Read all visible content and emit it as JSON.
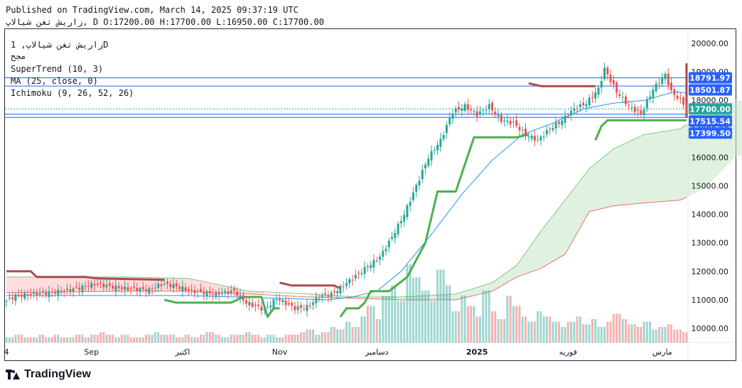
{
  "header": {
    "published": "Published on TradingView.com, March 14, 2025 09:37:19 UTC",
    "ohlc": "زاریش تغن شیالاپ, D O:17200.00 H:17700.00 L:16950.00 C:17700.00"
  },
  "legend": {
    "symbol": "زاریش تغن شیالاپ, 1D",
    "exchange": "مجح",
    "supertrend": "SuperTrend (10, 3)",
    "ma": "MA (25, close, 0)",
    "ichimoku": "Ichimoku (9, 26, 52, 26)"
  },
  "brand": {
    "name": "TradingView"
  },
  "colors": {
    "up": "#26a69a",
    "down": "#ef5350",
    "supertrend_up": "#4caf50",
    "supertrend_down": "#a84c50",
    "ma": "#2196f3",
    "cloud_green": "#c8e6c9",
    "cloud_red": "#ffcdd2",
    "label_blue": "#2962ff",
    "label_green": "#26a69a"
  },
  "chart_data": {
    "type": "candlestick",
    "y_axis": {
      "min": 9500,
      "max": 20500,
      "ticks": [
        10000,
        11000,
        12000,
        13000,
        14000,
        15000,
        16000,
        17000,
        18000,
        19000,
        20000
      ],
      "tick_labels": [
        "10000.00",
        "11000.00",
        "12000.00",
        "13000.00",
        "14000.00",
        "15000.00",
        "16000.00",
        "17000.00",
        "18000.00",
        "19000.00",
        "20000.00"
      ]
    },
    "x_axis": {
      "labels": [
        "4",
        "Sep",
        "اکتبر",
        "Nov",
        "دسامبر",
        "2025",
        "فوریه",
        "مارس"
      ],
      "label_bar_index": [
        0,
        28,
        58,
        90,
        122,
        155,
        185,
        216
      ]
    },
    "price_labels": [
      {
        "value": 18791.97,
        "text": "18791.97",
        "color": "#2962ff"
      },
      {
        "value": 18501.87,
        "text": "18501.87",
        "color": "#2962ff"
      },
      {
        "value": 17700.0,
        "text": "17700.00",
        "color": "#26a69a"
      },
      {
        "value": 17515.54,
        "text": "17515.54",
        "color": "#2962ff"
      },
      {
        "value": 17399.5,
        "text": "17399.50",
        "color": "#2962ff"
      }
    ],
    "bars_count": 225,
    "price_path": [
      [
        0,
        10900
      ],
      [
        4,
        11150
      ],
      [
        10,
        11200
      ],
      [
        20,
        11300
      ],
      [
        30,
        11550
      ],
      [
        40,
        11400
      ],
      [
        48,
        11350
      ],
      [
        52,
        11550
      ],
      [
        56,
        11500
      ],
      [
        62,
        11300
      ],
      [
        70,
        11200
      ],
      [
        76,
        11300
      ],
      [
        80,
        10900
      ],
      [
        86,
        10650
      ],
      [
        90,
        11050
      ],
      [
        96,
        10700
      ],
      [
        100,
        10750
      ],
      [
        104,
        11100
      ],
      [
        108,
        11200
      ],
      [
        112,
        11500
      ],
      [
        118,
        12000
      ],
      [
        124,
        12500
      ],
      [
        128,
        13200
      ],
      [
        132,
        14000
      ],
      [
        136,
        15000
      ],
      [
        140,
        16000
      ],
      [
        144,
        16600
      ],
      [
        148,
        17600
      ],
      [
        152,
        17800
      ],
      [
        156,
        17500
      ],
      [
        160,
        17800
      ],
      [
        164,
        17300
      ],
      [
        168,
        17200
      ],
      [
        172,
        16800
      ],
      [
        176,
        16600
      ],
      [
        180,
        17000
      ],
      [
        184,
        17300
      ],
      [
        188,
        17700
      ],
      [
        192,
        17900
      ],
      [
        196,
        18400
      ],
      [
        198,
        19100
      ],
      [
        202,
        18300
      ],
      [
        206,
        17800
      ],
      [
        210,
        17500
      ],
      [
        214,
        18400
      ],
      [
        218,
        18900
      ],
      [
        220,
        18300
      ],
      [
        224,
        17900
      ],
      [
        226,
        17400
      ],
      [
        228,
        17200
      ],
      [
        230,
        17700
      ]
    ],
    "ma_path": [
      [
        0,
        11150
      ],
      [
        30,
        11150
      ],
      [
        60,
        11150
      ],
      [
        90,
        11050
      ],
      [
        106,
        11000
      ],
      [
        114,
        11100
      ],
      [
        122,
        11300
      ],
      [
        130,
        12000
      ],
      [
        140,
        13300
      ],
      [
        150,
        14700
      ],
      [
        160,
        15900
      ],
      [
        170,
        16800
      ],
      [
        180,
        17200
      ],
      [
        190,
        17700
      ],
      [
        200,
        17900
      ],
      [
        210,
        18000
      ],
      [
        220,
        18300
      ],
      [
        230,
        18200
      ]
    ],
    "supertrend_segments": [
      {
        "dir": "down",
        "points": [
          [
            0,
            12000
          ],
          [
            8,
            12000
          ],
          [
            10,
            11800
          ],
          [
            26,
            11800
          ],
          [
            30,
            11750
          ],
          [
            52,
            11700
          ]
        ]
      },
      {
        "dir": "up",
        "points": [
          [
            52,
            11000
          ],
          [
            56,
            10900
          ],
          [
            74,
            10900
          ],
          [
            78,
            11100
          ],
          [
            84,
            11100
          ],
          [
            86,
            10400
          ],
          [
            88,
            10700
          ],
          [
            90,
            10700
          ]
        ]
      },
      {
        "dir": "down",
        "points": [
          [
            90,
            11600
          ],
          [
            94,
            11500
          ],
          [
            108,
            11500
          ],
          [
            110,
            11400
          ]
        ]
      },
      {
        "dir": "up",
        "points": [
          [
            110,
            10400
          ],
          [
            112,
            10700
          ],
          [
            116,
            10700
          ],
          [
            118,
            10900
          ],
          [
            120,
            11300
          ],
          [
            126,
            11300
          ],
          [
            132,
            11800
          ],
          [
            138,
            13000
          ],
          [
            142,
            14800
          ],
          [
            148,
            14800
          ],
          [
            154,
            16700
          ],
          [
            168,
            16700
          ],
          [
            172,
            16800
          ]
        ]
      },
      {
        "dir": "down",
        "points": [
          [
            172,
            18600
          ],
          [
            176,
            18500
          ],
          [
            194,
            18500
          ]
        ]
      },
      {
        "dir": "up",
        "points": [
          [
            194,
            16600
          ],
          [
            196,
            17100
          ],
          [
            198,
            17300
          ],
          [
            202,
            17300
          ],
          [
            226,
            17300
          ]
        ]
      },
      {
        "dir": "down",
        "points": [
          [
            226,
            17400
          ],
          [
            228,
            19300
          ],
          [
            230,
            19300
          ]
        ]
      }
    ],
    "cloud_upper": [
      [
        0,
        11800
      ],
      [
        40,
        11800
      ],
      [
        60,
        11750
      ],
      [
        80,
        11300
      ],
      [
        100,
        11200
      ],
      [
        116,
        11100
      ],
      [
        130,
        11100
      ],
      [
        148,
        11200
      ],
      [
        160,
        11600
      ],
      [
        168,
        12200
      ],
      [
        176,
        13400
      ],
      [
        184,
        14500
      ],
      [
        192,
        15600
      ],
      [
        200,
        16300
      ],
      [
        210,
        16800
      ],
      [
        222,
        17000
      ],
      [
        230,
        17600
      ],
      [
        240,
        18000
      ],
      [
        250,
        18000
      ]
    ],
    "cloud_lower": [
      [
        0,
        11250
      ],
      [
        40,
        11300
      ],
      [
        60,
        11300
      ],
      [
        80,
        11200
      ],
      [
        100,
        11100
      ],
      [
        116,
        11050
      ],
      [
        130,
        11000
      ],
      [
        148,
        11000
      ],
      [
        160,
        11300
      ],
      [
        168,
        11800
      ],
      [
        176,
        12100
      ],
      [
        184,
        12600
      ],
      [
        192,
        14100
      ],
      [
        200,
        14300
      ],
      [
        210,
        14400
      ],
      [
        222,
        14500
      ],
      [
        230,
        14900
      ],
      [
        240,
        16000
      ],
      [
        250,
        16300
      ]
    ],
    "volume_profile": [
      2,
      3,
      2,
      2,
      3,
      2,
      3,
      2,
      2,
      3,
      2,
      3,
      4,
      3,
      2,
      3,
      2,
      2,
      3,
      4,
      3,
      3,
      2,
      3,
      2,
      3,
      4,
      3,
      2,
      3,
      3,
      4,
      3,
      2,
      3,
      2,
      3,
      3,
      4,
      5,
      3,
      4,
      6,
      5,
      8,
      6,
      10,
      14,
      9,
      18,
      22,
      16,
      30,
      25,
      20,
      16,
      28,
      22,
      12,
      18,
      14,
      10,
      20,
      12,
      9,
      18,
      14,
      10,
      8,
      12,
      10,
      8,
      6,
      8,
      10,
      7,
      9,
      6,
      8,
      11,
      9,
      7,
      6,
      8,
      5,
      6,
      7,
      5,
      4
    ]
  }
}
